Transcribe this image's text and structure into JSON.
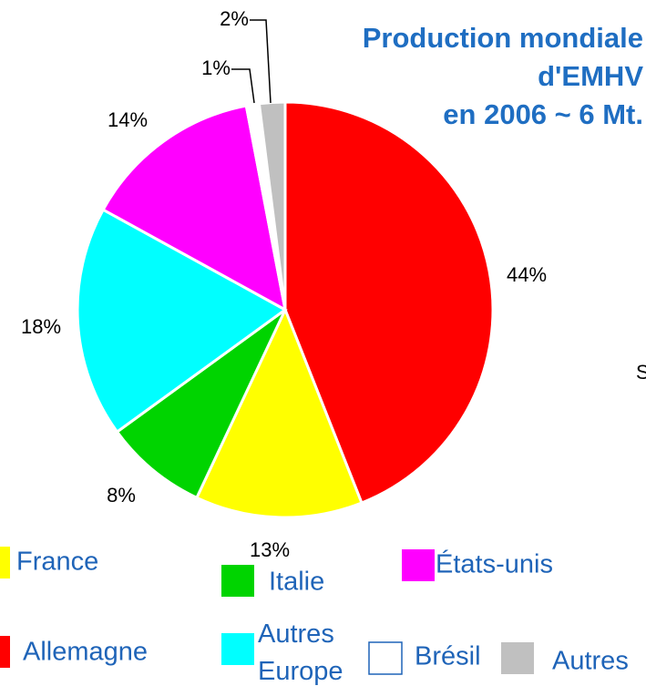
{
  "chart_data": {
    "type": "pie",
    "title_lines": [
      "Production mondiale",
      "d'EMHV",
      "en 2006 ~ 6 Mt."
    ],
    "note": "S",
    "categories": [
      "Allemagne",
      "France",
      "Italie",
      "Autres Europe",
      "États-unis",
      "Brésil",
      "Autres"
    ],
    "values": [
      44,
      13,
      8,
      18,
      14,
      1,
      2
    ],
    "value_labels": [
      "44%",
      "13%",
      "8%",
      "18%",
      "14%",
      "1%",
      "2%"
    ],
    "colors": [
      "#ff0000",
      "#ffff00",
      "#00d400",
      "#00ffff",
      "#ff00ff",
      "#ffffff",
      "#c0c0c0"
    ]
  }
}
